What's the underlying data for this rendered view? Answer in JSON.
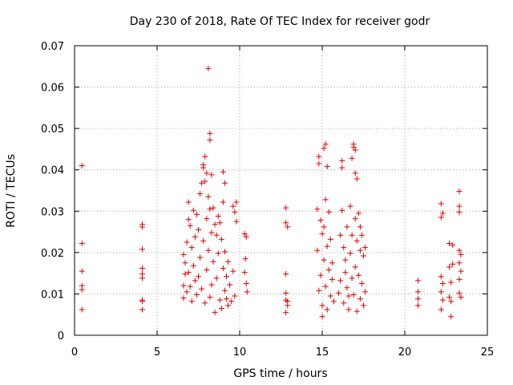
{
  "chart_data": {
    "type": "scatter",
    "title": "Day 230 of 2018, Rate Of TEC Index for receiver godr",
    "xlabel": "GPS time / hours",
    "ylabel": "ROTI / TECUs",
    "xlim": [
      0,
      25
    ],
    "ylim": [
      0,
      0.07
    ],
    "x_ticks": [
      "0",
      "5",
      "10",
      "15",
      "20",
      "25"
    ],
    "y_ticks": [
      "0",
      "0.01",
      "0.02",
      "0.03",
      "0.04",
      "0.05",
      "0.06",
      "0.07"
    ],
    "grid": true,
    "marker": "plus",
    "color": "#e00000",
    "series": [
      {
        "points": [
          [
            0.45,
            0.041
          ],
          [
            0.45,
            0.0222
          ],
          [
            0.45,
            0.0155
          ],
          [
            0.45,
            0.012
          ],
          [
            0.45,
            0.011
          ],
          [
            0.45,
            0.0062
          ],
          [
            4.1,
            0.0268
          ],
          [
            4.1,
            0.0262
          ],
          [
            4.1,
            0.0208
          ],
          [
            4.1,
            0.0162
          ],
          [
            4.1,
            0.0148
          ],
          [
            4.1,
            0.0138
          ],
          [
            4.1,
            0.0085
          ],
          [
            4.1,
            0.0082
          ],
          [
            4.1,
            0.0062
          ],
          [
            6.6,
            0.0195
          ],
          [
            6.6,
            0.012
          ],
          [
            6.6,
            0.009
          ],
          [
            6.7,
            0.0175
          ],
          [
            6.7,
            0.0148
          ],
          [
            6.8,
            0.0225
          ],
          [
            6.8,
            0.0105
          ],
          [
            6.9,
            0.0322
          ],
          [
            6.9,
            0.028
          ],
          [
            6.9,
            0.0152
          ],
          [
            7.0,
            0.0265
          ],
          [
            7.0,
            0.0118
          ],
          [
            7.1,
            0.0212
          ],
          [
            7.1,
            0.0082
          ],
          [
            7.2,
            0.0302
          ],
          [
            7.2,
            0.0168
          ],
          [
            7.3,
            0.0132
          ],
          [
            7.3,
            0.0238
          ],
          [
            7.4,
            0.0292
          ],
          [
            7.4,
            0.0098
          ],
          [
            7.5,
            0.0255
          ],
          [
            7.5,
            0.0142
          ],
          [
            7.6,
            0.0342
          ],
          [
            7.6,
            0.0188
          ],
          [
            7.7,
            0.0368
          ],
          [
            7.7,
            0.0112
          ],
          [
            7.8,
            0.0412
          ],
          [
            7.8,
            0.0405
          ],
          [
            7.8,
            0.0228
          ],
          [
            7.9,
            0.0432
          ],
          [
            7.9,
            0.0372
          ],
          [
            7.9,
            0.0078
          ],
          [
            8.0,
            0.0392
          ],
          [
            8.0,
            0.0282
          ],
          [
            8.0,
            0.0158
          ],
          [
            8.1,
            0.0645
          ],
          [
            8.1,
            0.0335
          ],
          [
            8.1,
            0.0205
          ],
          [
            8.2,
            0.0488
          ],
          [
            8.2,
            0.0472
          ],
          [
            8.2,
            0.0305
          ],
          [
            8.2,
            0.0092
          ],
          [
            8.3,
            0.0388
          ],
          [
            8.3,
            0.0248
          ],
          [
            8.3,
            0.0122
          ],
          [
            8.4,
            0.0308
          ],
          [
            8.4,
            0.0178
          ],
          [
            8.5,
            0.0268
          ],
          [
            8.5,
            0.0055
          ],
          [
            8.6,
            0.0242
          ],
          [
            8.6,
            0.0138
          ],
          [
            8.7,
            0.0288
          ],
          [
            8.7,
            0.0198
          ],
          [
            8.8,
            0.0272
          ],
          [
            8.8,
            0.0085
          ],
          [
            8.9,
            0.0232
          ],
          [
            8.9,
            0.0065
          ],
          [
            9.0,
            0.0395
          ],
          [
            9.0,
            0.0322
          ],
          [
            9.0,
            0.0162
          ],
          [
            9.1,
            0.0368
          ],
          [
            9.1,
            0.0202
          ],
          [
            9.1,
            0.0108
          ],
          [
            9.2,
            0.0142
          ],
          [
            9.2,
            0.0088
          ],
          [
            9.3,
            0.0178
          ],
          [
            9.3,
            0.0072
          ],
          [
            9.4,
            0.0122
          ],
          [
            9.5,
            0.0082
          ],
          [
            9.6,
            0.0312
          ],
          [
            9.6,
            0.0155
          ],
          [
            9.7,
            0.0298
          ],
          [
            9.7,
            0.0095
          ],
          [
            9.8,
            0.0322
          ],
          [
            9.8,
            0.0275
          ],
          [
            10.3,
            0.0245
          ],
          [
            10.3,
            0.0152
          ],
          [
            10.35,
            0.0185
          ],
          [
            10.4,
            0.0238
          ],
          [
            10.4,
            0.0125
          ],
          [
            10.45,
            0.0105
          ],
          [
            12.8,
            0.0308
          ],
          [
            12.8,
            0.0272
          ],
          [
            12.8,
            0.0148
          ],
          [
            12.8,
            0.0102
          ],
          [
            12.8,
            0.0085
          ],
          [
            12.8,
            0.0055
          ],
          [
            12.9,
            0.0262
          ],
          [
            12.9,
            0.0082
          ],
          [
            12.9,
            0.0072
          ],
          [
            14.7,
            0.0305
          ],
          [
            14.7,
            0.0205
          ],
          [
            14.8,
            0.0432
          ],
          [
            14.8,
            0.0415
          ],
          [
            14.8,
            0.0108
          ],
          [
            14.9,
            0.0278
          ],
          [
            14.9,
            0.0145
          ],
          [
            15.0,
            0.0245
          ],
          [
            15.0,
            0.0072
          ],
          [
            15.0,
            0.0045
          ],
          [
            15.1,
            0.0452
          ],
          [
            15.1,
            0.0262
          ],
          [
            15.1,
            0.0182
          ],
          [
            15.2,
            0.0462
          ],
          [
            15.2,
            0.0328
          ],
          [
            15.2,
            0.0118
          ],
          [
            15.3,
            0.0408
          ],
          [
            15.3,
            0.0215
          ],
          [
            15.3,
            0.0062
          ],
          [
            15.4,
            0.0298
          ],
          [
            15.4,
            0.0158
          ],
          [
            15.5,
            0.0232
          ],
          [
            15.5,
            0.0095
          ],
          [
            15.6,
            0.0175
          ],
          [
            15.6,
            0.0135
          ],
          [
            15.7,
            0.0082
          ],
          [
            16.0,
            0.0102
          ],
          [
            16.1,
            0.0242
          ],
          [
            16.1,
            0.0132
          ],
          [
            16.2,
            0.0422
          ],
          [
            16.2,
            0.0405
          ],
          [
            16.2,
            0.0302
          ],
          [
            16.3,
            0.0212
          ],
          [
            16.3,
            0.0078
          ],
          [
            16.4,
            0.0182
          ],
          [
            16.4,
            0.0152
          ],
          [
            16.5,
            0.0262
          ],
          [
            16.5,
            0.0115
          ],
          [
            16.6,
            0.0095
          ],
          [
            16.6,
            0.0062
          ],
          [
            16.7,
            0.0312
          ],
          [
            16.7,
            0.0198
          ],
          [
            16.8,
            0.0428
          ],
          [
            16.8,
            0.0242
          ],
          [
            16.8,
            0.0138
          ],
          [
            16.9,
            0.0462
          ],
          [
            16.9,
            0.0455
          ],
          [
            16.9,
            0.0098
          ],
          [
            17.0,
            0.0448
          ],
          [
            17.0,
            0.0392
          ],
          [
            17.0,
            0.0282
          ],
          [
            17.0,
            0.0165
          ],
          [
            17.1,
            0.0378
          ],
          [
            17.1,
            0.0228
          ],
          [
            17.1,
            0.0058
          ],
          [
            17.2,
            0.0295
          ],
          [
            17.2,
            0.0145
          ],
          [
            17.3,
            0.0262
          ],
          [
            17.3,
            0.0205
          ],
          [
            17.3,
            0.0088
          ],
          [
            17.4,
            0.0242
          ],
          [
            17.4,
            0.0125
          ],
          [
            17.5,
            0.0192
          ],
          [
            17.5,
            0.0072
          ],
          [
            17.6,
            0.0212
          ],
          [
            17.6,
            0.0105
          ],
          [
            20.8,
            0.0132
          ],
          [
            20.8,
            0.0105
          ],
          [
            20.8,
            0.0088
          ],
          [
            20.8,
            0.0072
          ],
          [
            22.2,
            0.0318
          ],
          [
            22.2,
            0.0285
          ],
          [
            22.2,
            0.0142
          ],
          [
            22.2,
            0.0105
          ],
          [
            22.2,
            0.0062
          ],
          [
            22.3,
            0.0295
          ],
          [
            22.3,
            0.0125
          ],
          [
            22.3,
            0.0085
          ],
          [
            22.7,
            0.0222
          ],
          [
            22.7,
            0.0165
          ],
          [
            22.7,
            0.0092
          ],
          [
            22.8,
            0.0128
          ],
          [
            22.8,
            0.0082
          ],
          [
            22.8,
            0.0045
          ],
          [
            22.9,
            0.0218
          ],
          [
            22.9,
            0.0172
          ],
          [
            23.3,
            0.0348
          ],
          [
            23.3,
            0.0312
          ],
          [
            23.3,
            0.0298
          ],
          [
            23.3,
            0.0205
          ],
          [
            23.3,
            0.0175
          ],
          [
            23.3,
            0.0135
          ],
          [
            23.3,
            0.0102
          ],
          [
            23.4,
            0.0195
          ],
          [
            23.4,
            0.0155
          ],
          [
            23.4,
            0.0092
          ]
        ]
      }
    ]
  }
}
